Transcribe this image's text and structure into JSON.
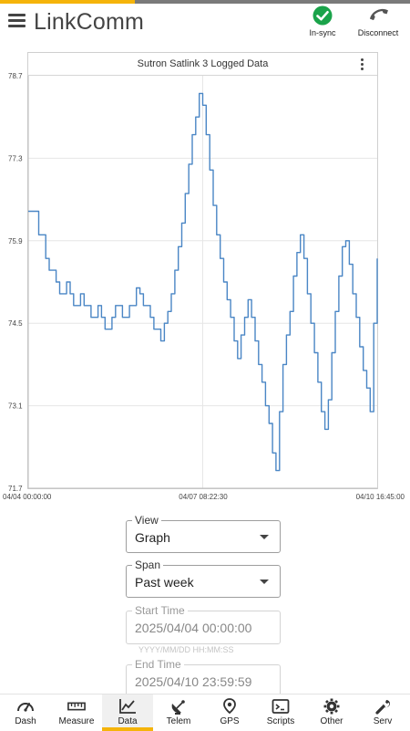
{
  "header": {
    "title": "LinkComm",
    "sync_label": "In-sync",
    "disconnect_label": "Disconnect",
    "accent_gold": "#f5b40a",
    "accent_gray": "#7a7a7a",
    "sync_color": "#1aa34a"
  },
  "chart_card": {
    "title": "Sutron Satlink 3 Logged Data",
    "menu_icon": "kebab-menu-icon"
  },
  "chart_data": {
    "type": "line",
    "title": "Sutron Satlink 3 Logged Data",
    "xlabel": "",
    "ylabel": "",
    "y_ticks": [
      "78.7",
      "77.3",
      "75.9",
      "74.5",
      "73.1",
      "71.7"
    ],
    "ylim": [
      71.7,
      78.7
    ],
    "x_ticks": [
      "04/04 00:00:00",
      "04/07 08:22:30",
      "04/10 16:45:00"
    ],
    "grid": true,
    "series": [
      {
        "color": "#4a86c5",
        "points": [
          [
            0.0,
            76.4
          ],
          [
            0.02,
            76.4
          ],
          [
            0.03,
            76.0
          ],
          [
            0.05,
            75.6
          ],
          [
            0.06,
            75.4
          ],
          [
            0.08,
            75.2
          ],
          [
            0.09,
            75.0
          ],
          [
            0.11,
            75.2
          ],
          [
            0.12,
            75.0
          ],
          [
            0.13,
            74.8
          ],
          [
            0.15,
            75.0
          ],
          [
            0.16,
            74.8
          ],
          [
            0.18,
            74.6
          ],
          [
            0.2,
            74.8
          ],
          [
            0.21,
            74.6
          ],
          [
            0.22,
            74.4
          ],
          [
            0.24,
            74.6
          ],
          [
            0.25,
            74.8
          ],
          [
            0.27,
            74.6
          ],
          [
            0.29,
            74.8
          ],
          [
            0.31,
            75.1
          ],
          [
            0.32,
            75.0
          ],
          [
            0.33,
            74.8
          ],
          [
            0.35,
            74.6
          ],
          [
            0.36,
            74.4
          ],
          [
            0.38,
            74.2
          ],
          [
            0.39,
            74.5
          ],
          [
            0.4,
            74.7
          ],
          [
            0.41,
            75.0
          ],
          [
            0.42,
            75.4
          ],
          [
            0.43,
            75.8
          ],
          [
            0.44,
            76.2
          ],
          [
            0.45,
            76.7
          ],
          [
            0.46,
            77.2
          ],
          [
            0.47,
            77.7
          ],
          [
            0.48,
            78.0
          ],
          [
            0.49,
            78.4
          ],
          [
            0.5,
            78.2
          ],
          [
            0.51,
            77.7
          ],
          [
            0.52,
            77.1
          ],
          [
            0.53,
            76.5
          ],
          [
            0.54,
            76.0
          ],
          [
            0.55,
            75.6
          ],
          [
            0.56,
            75.2
          ],
          [
            0.57,
            74.9
          ],
          [
            0.58,
            74.6
          ],
          [
            0.59,
            74.2
          ],
          [
            0.6,
            73.9
          ],
          [
            0.61,
            74.3
          ],
          [
            0.62,
            74.6
          ],
          [
            0.63,
            74.9
          ],
          [
            0.64,
            74.6
          ],
          [
            0.65,
            74.2
          ],
          [
            0.66,
            73.8
          ],
          [
            0.67,
            73.5
          ],
          [
            0.68,
            73.1
          ],
          [
            0.69,
            72.8
          ],
          [
            0.7,
            72.3
          ],
          [
            0.71,
            72.0
          ],
          [
            0.72,
            73.0
          ],
          [
            0.73,
            73.8
          ],
          [
            0.74,
            74.3
          ],
          [
            0.75,
            74.7
          ],
          [
            0.76,
            75.3
          ],
          [
            0.77,
            75.7
          ],
          [
            0.78,
            76.0
          ],
          [
            0.79,
            75.6
          ],
          [
            0.8,
            75.0
          ],
          [
            0.81,
            74.5
          ],
          [
            0.82,
            74.0
          ],
          [
            0.83,
            73.5
          ],
          [
            0.84,
            73.0
          ],
          [
            0.85,
            72.7
          ],
          [
            0.86,
            73.2
          ],
          [
            0.87,
            74.0
          ],
          [
            0.88,
            74.7
          ],
          [
            0.89,
            75.3
          ],
          [
            0.9,
            75.8
          ],
          [
            0.91,
            75.9
          ],
          [
            0.92,
            75.5
          ],
          [
            0.93,
            75.0
          ],
          [
            0.94,
            74.6
          ],
          [
            0.95,
            74.1
          ],
          [
            0.96,
            73.7
          ],
          [
            0.97,
            73.4
          ],
          [
            0.98,
            73.0
          ],
          [
            0.99,
            74.5
          ],
          [
            1.0,
            75.6
          ]
        ]
      }
    ]
  },
  "controls": {
    "view": {
      "legend": "View",
      "value": "Graph"
    },
    "span": {
      "legend": "Span",
      "value": "Past week"
    },
    "start_time": {
      "legend": "Start Time",
      "value": "2025/04/04 00:00:00",
      "hint": "YYYY/MM/DD HH:MM:SS"
    },
    "end_time": {
      "legend": "End Time",
      "value": "2025/04/10 23:59:59"
    }
  },
  "bottom_nav": {
    "items": [
      {
        "label": "Dash",
        "icon": "speedometer-icon"
      },
      {
        "label": "Measure",
        "icon": "ruler-icon"
      },
      {
        "label": "Data",
        "icon": "line-chart-icon",
        "active": true
      },
      {
        "label": "Telem",
        "icon": "satellite-dish-icon"
      },
      {
        "label": "GPS",
        "icon": "location-pin-icon"
      },
      {
        "label": "Scripts",
        "icon": "terminal-icon"
      },
      {
        "label": "Other",
        "icon": "gear-icon"
      },
      {
        "label": "Serv",
        "icon": "wrench-icon"
      }
    ]
  }
}
